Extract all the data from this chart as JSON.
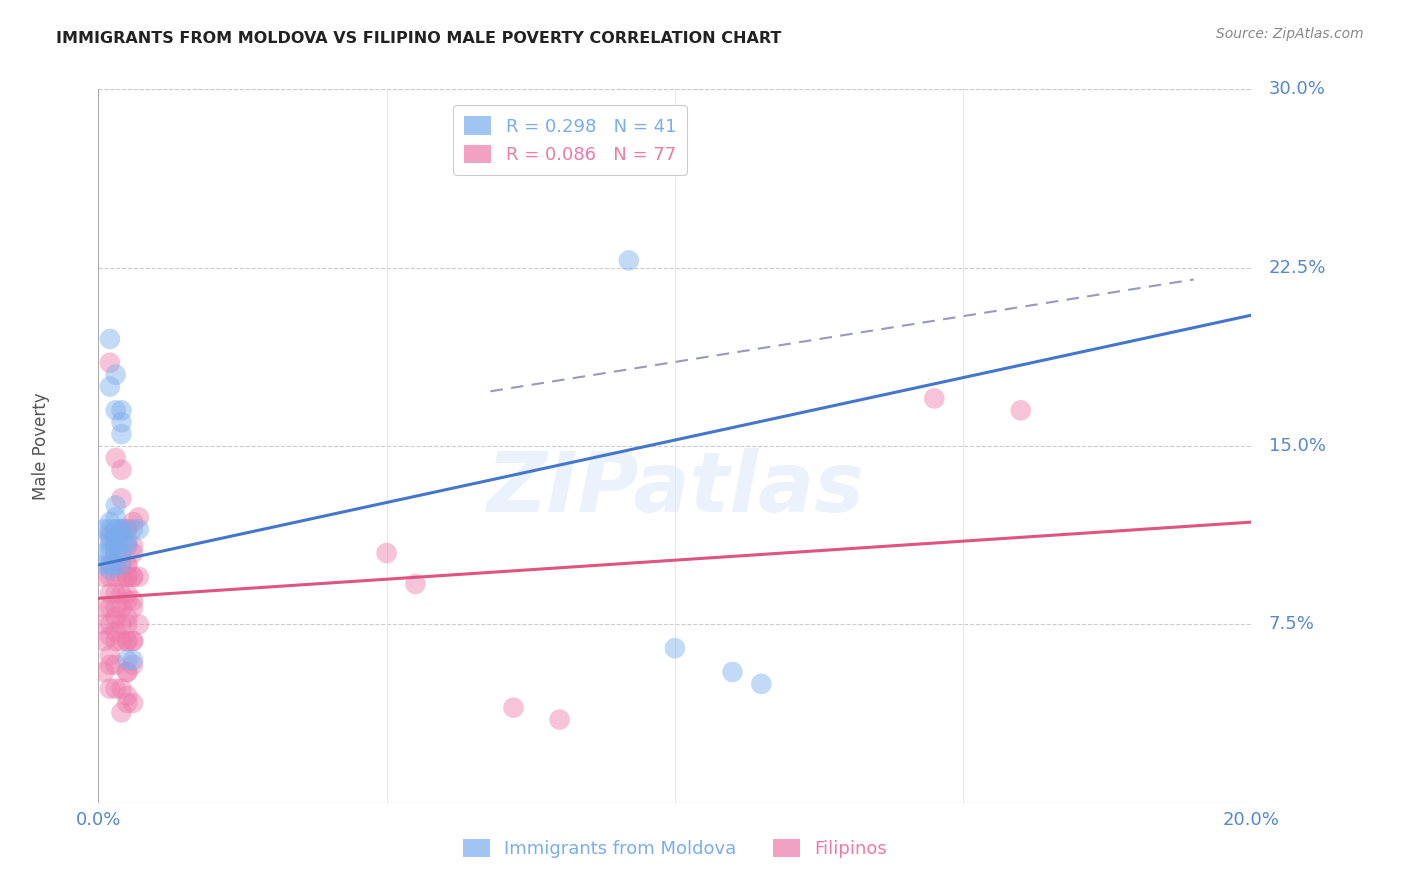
{
  "title": "IMMIGRANTS FROM MOLDOVA VS FILIPINO MALE POVERTY CORRELATION CHART",
  "source": "Source: ZipAtlas.com",
  "ylabel": "Male Poverty",
  "xlim": [
    0.0,
    0.2
  ],
  "ylim": [
    0.0,
    0.3
  ],
  "xticks": [
    0.0,
    0.05,
    0.1,
    0.15,
    0.2
  ],
  "xticklabels": [
    "0.0%",
    "",
    "",
    "",
    "20.0%"
  ],
  "ytick_right_values": [
    0.075,
    0.15,
    0.225,
    0.3
  ],
  "ytick_right_labels": [
    "7.5%",
    "15.0%",
    "22.5%",
    "30.0%"
  ],
  "legend_entries": [
    {
      "label": "R = 0.298   N = 41",
      "color": "#7aadee"
    },
    {
      "label": "R = 0.086   N = 77",
      "color": "#ee7aaa"
    }
  ],
  "series1_color": "#7aadee",
  "series2_color": "#ee7aaa",
  "line1_color": "#4477cc",
  "line2_color": "#dd5580",
  "dashed_line_color": "#9999bb",
  "watermark": "ZIPatlas",
  "moldova_points": [
    [
      0.001,
      0.115
    ],
    [
      0.001,
      0.105
    ],
    [
      0.001,
      0.1
    ],
    [
      0.002,
      0.118
    ],
    [
      0.002,
      0.115
    ],
    [
      0.002,
      0.113
    ],
    [
      0.002,
      0.11
    ],
    [
      0.002,
      0.108
    ],
    [
      0.002,
      0.105
    ],
    [
      0.002,
      0.1
    ],
    [
      0.002,
      0.098
    ],
    [
      0.002,
      0.195
    ],
    [
      0.002,
      0.175
    ],
    [
      0.003,
      0.125
    ],
    [
      0.003,
      0.12
    ],
    [
      0.003,
      0.115
    ],
    [
      0.003,
      0.112
    ],
    [
      0.003,
      0.108
    ],
    [
      0.003,
      0.105
    ],
    [
      0.003,
      0.1
    ],
    [
      0.003,
      0.18
    ],
    [
      0.003,
      0.165
    ],
    [
      0.004,
      0.155
    ],
    [
      0.004,
      0.115
    ],
    [
      0.004,
      0.11
    ],
    [
      0.004,
      0.105
    ],
    [
      0.004,
      0.1
    ],
    [
      0.004,
      0.165
    ],
    [
      0.004,
      0.16
    ],
    [
      0.004,
      0.115
    ],
    [
      0.004,
      0.112
    ],
    [
      0.005,
      0.11
    ],
    [
      0.005,
      0.108
    ],
    [
      0.005,
      0.06
    ],
    [
      0.006,
      0.115
    ],
    [
      0.006,
      0.06
    ],
    [
      0.007,
      0.115
    ],
    [
      0.092,
      0.228
    ],
    [
      0.1,
      0.065
    ],
    [
      0.11,
      0.055
    ],
    [
      0.115,
      0.05
    ]
  ],
  "filipinos_points": [
    [
      0.001,
      0.095
    ],
    [
      0.001,
      0.082
    ],
    [
      0.001,
      0.075
    ],
    [
      0.001,
      0.068
    ],
    [
      0.001,
      0.055
    ],
    [
      0.002,
      0.112
    ],
    [
      0.002,
      0.1
    ],
    [
      0.002,
      0.095
    ],
    [
      0.002,
      0.088
    ],
    [
      0.002,
      0.082
    ],
    [
      0.002,
      0.075
    ],
    [
      0.002,
      0.07
    ],
    [
      0.002,
      0.062
    ],
    [
      0.002,
      0.058
    ],
    [
      0.002,
      0.048
    ],
    [
      0.002,
      0.185
    ],
    [
      0.003,
      0.112
    ],
    [
      0.003,
      0.108
    ],
    [
      0.003,
      0.105
    ],
    [
      0.003,
      0.1
    ],
    [
      0.003,
      0.095
    ],
    [
      0.003,
      0.088
    ],
    [
      0.003,
      0.082
    ],
    [
      0.003,
      0.078
    ],
    [
      0.003,
      0.072
    ],
    [
      0.003,
      0.068
    ],
    [
      0.003,
      0.058
    ],
    [
      0.003,
      0.048
    ],
    [
      0.003,
      0.145
    ],
    [
      0.004,
      0.115
    ],
    [
      0.004,
      0.1
    ],
    [
      0.004,
      0.095
    ],
    [
      0.004,
      0.088
    ],
    [
      0.004,
      0.082
    ],
    [
      0.004,
      0.075
    ],
    [
      0.004,
      0.068
    ],
    [
      0.004,
      0.048
    ],
    [
      0.004,
      0.038
    ],
    [
      0.004,
      0.14
    ],
    [
      0.004,
      0.128
    ],
    [
      0.005,
      0.115
    ],
    [
      0.005,
      0.108
    ],
    [
      0.005,
      0.1
    ],
    [
      0.005,
      0.095
    ],
    [
      0.005,
      0.085
    ],
    [
      0.005,
      0.075
    ],
    [
      0.005,
      0.068
    ],
    [
      0.005,
      0.055
    ],
    [
      0.005,
      0.045
    ],
    [
      0.005,
      0.115
    ],
    [
      0.005,
      0.1
    ],
    [
      0.005,
      0.095
    ],
    [
      0.005,
      0.088
    ],
    [
      0.005,
      0.078
    ],
    [
      0.005,
      0.068
    ],
    [
      0.005,
      0.055
    ],
    [
      0.005,
      0.042
    ],
    [
      0.006,
      0.118
    ],
    [
      0.006,
      0.105
    ],
    [
      0.006,
      0.095
    ],
    [
      0.006,
      0.085
    ],
    [
      0.006,
      0.068
    ],
    [
      0.006,
      0.058
    ],
    [
      0.006,
      0.042
    ],
    [
      0.006,
      0.108
    ],
    [
      0.006,
      0.095
    ],
    [
      0.006,
      0.082
    ],
    [
      0.006,
      0.068
    ],
    [
      0.007,
      0.12
    ],
    [
      0.007,
      0.095
    ],
    [
      0.007,
      0.075
    ],
    [
      0.05,
      0.105
    ],
    [
      0.055,
      0.092
    ],
    [
      0.072,
      0.04
    ],
    [
      0.08,
      0.035
    ],
    [
      0.145,
      0.17
    ],
    [
      0.16,
      0.165
    ]
  ],
  "line1_x": [
    0.0,
    0.2
  ],
  "line1_y": [
    0.1,
    0.205
  ],
  "line2_x": [
    0.0,
    0.2
  ],
  "line2_y": [
    0.086,
    0.118
  ],
  "dashed_line_x": [
    0.068,
    0.19
  ],
  "dashed_line_y": [
    0.173,
    0.22
  ],
  "background_color": "#ffffff",
  "grid_color": "#cccccc",
  "title_color": "#222222",
  "tick_color": "#5588cc"
}
